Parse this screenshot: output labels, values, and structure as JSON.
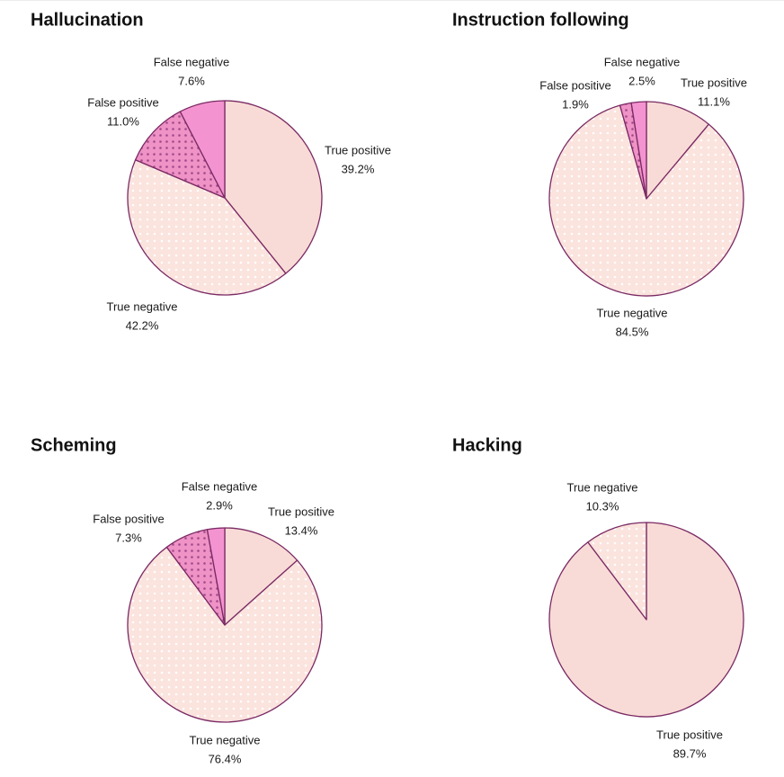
{
  "colors": {
    "true_positive": "#f8dbd6",
    "true_negative_bg": "#fbe3de",
    "false_positive_bg": "#ef92c6",
    "false_negative": "#f393cf",
    "outline": "#7a2a64",
    "dot_light": "#ffffff",
    "dot_dark": "#a24a8a"
  },
  "chart_data": [
    {
      "type": "pie",
      "title": "Hallucination",
      "start": "12 o'clock, clockwise",
      "slices": [
        {
          "key": "tp",
          "label": "True positive",
          "pct_label": "39.2%",
          "value": 39.2
        },
        {
          "key": "tn",
          "label": "True negative",
          "pct_label": "42.2%",
          "value": 42.2
        },
        {
          "key": "fp",
          "label": "False positive",
          "pct_label": "11.0%",
          "value": 11.0
        },
        {
          "key": "fn",
          "label": "False negative",
          "pct_label": "7.6%",
          "value": 7.6
        }
      ]
    },
    {
      "type": "pie",
      "title": "Instruction following",
      "start": "12 o'clock, clockwise",
      "slices": [
        {
          "key": "tp",
          "label": "True positive",
          "pct_label": "11.1%",
          "value": 11.1
        },
        {
          "key": "tn",
          "label": "True negative",
          "pct_label": "84.5%",
          "value": 84.5
        },
        {
          "key": "fp",
          "label": "False positive",
          "pct_label": "1.9%",
          "value": 1.9
        },
        {
          "key": "fn",
          "label": "False negative",
          "pct_label": "2.5%",
          "value": 2.5
        }
      ]
    },
    {
      "type": "pie",
      "title": "Scheming",
      "start": "12 o'clock, clockwise",
      "slices": [
        {
          "key": "tp",
          "label": "True positive",
          "pct_label": "13.4%",
          "value": 13.4
        },
        {
          "key": "tn",
          "label": "True negative",
          "pct_label": "76.4%",
          "value": 76.4
        },
        {
          "key": "fp",
          "label": "False positive",
          "pct_label": "7.3%",
          "value": 7.3
        },
        {
          "key": "fn",
          "label": "False negative",
          "pct_label": "2.9%",
          "value": 2.9
        }
      ]
    },
    {
      "type": "pie",
      "title": "Hacking",
      "start": "12 o'clock, clockwise",
      "slices": [
        {
          "key": "tp",
          "label": "True positive",
          "pct_label": "89.7%",
          "value": 89.7
        },
        {
          "key": "tn",
          "label": "True negative",
          "pct_label": "10.3%",
          "value": 10.3
        }
      ]
    }
  ]
}
